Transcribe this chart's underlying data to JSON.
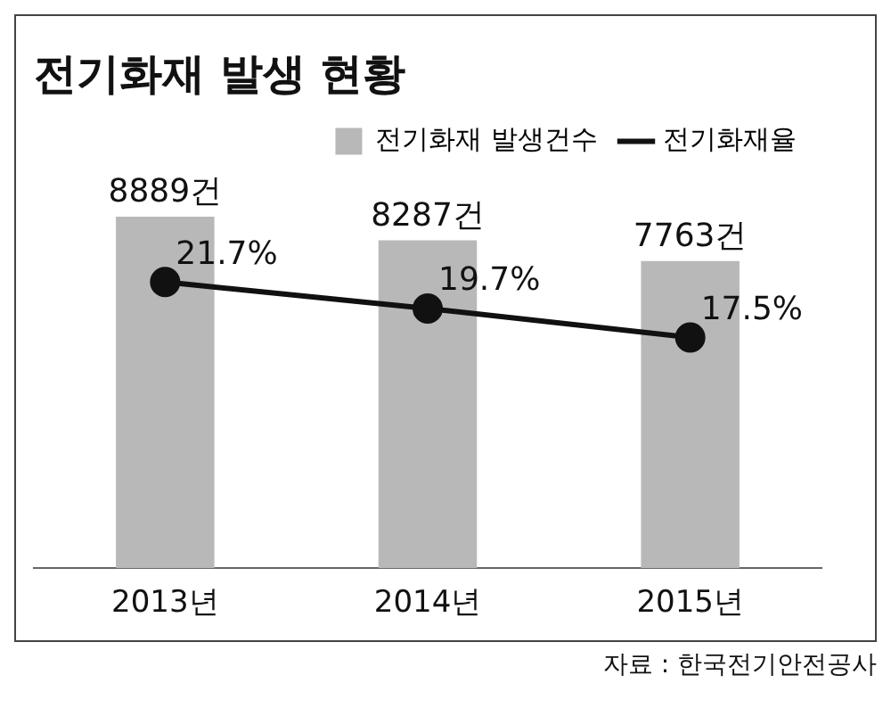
{
  "chart_data": {
    "type": "bar",
    "title": "전기화재 발생 현황",
    "categories": [
      "2013년",
      "2014년",
      "2015년"
    ],
    "series": [
      {
        "name": "전기화재 발생건수",
        "color": "#b8b8b8",
        "values": [
          8889,
          8287,
          7763
        ],
        "value_labels": [
          "8889건",
          "8287건",
          "7763건"
        ]
      },
      {
        "name": "전기화재율",
        "type": "line",
        "axis": "y2",
        "color": "#111111",
        "values": [
          21.7,
          19.7,
          17.5
        ],
        "value_labels": [
          "21.7%",
          "19.7%",
          "17.5%"
        ]
      }
    ],
    "legend": "top right",
    "marker": "circle",
    "grid": false,
    "tick_labels": "x",
    "annotations": [
      "자료 : 한국전기안전공사"
    ]
  }
}
